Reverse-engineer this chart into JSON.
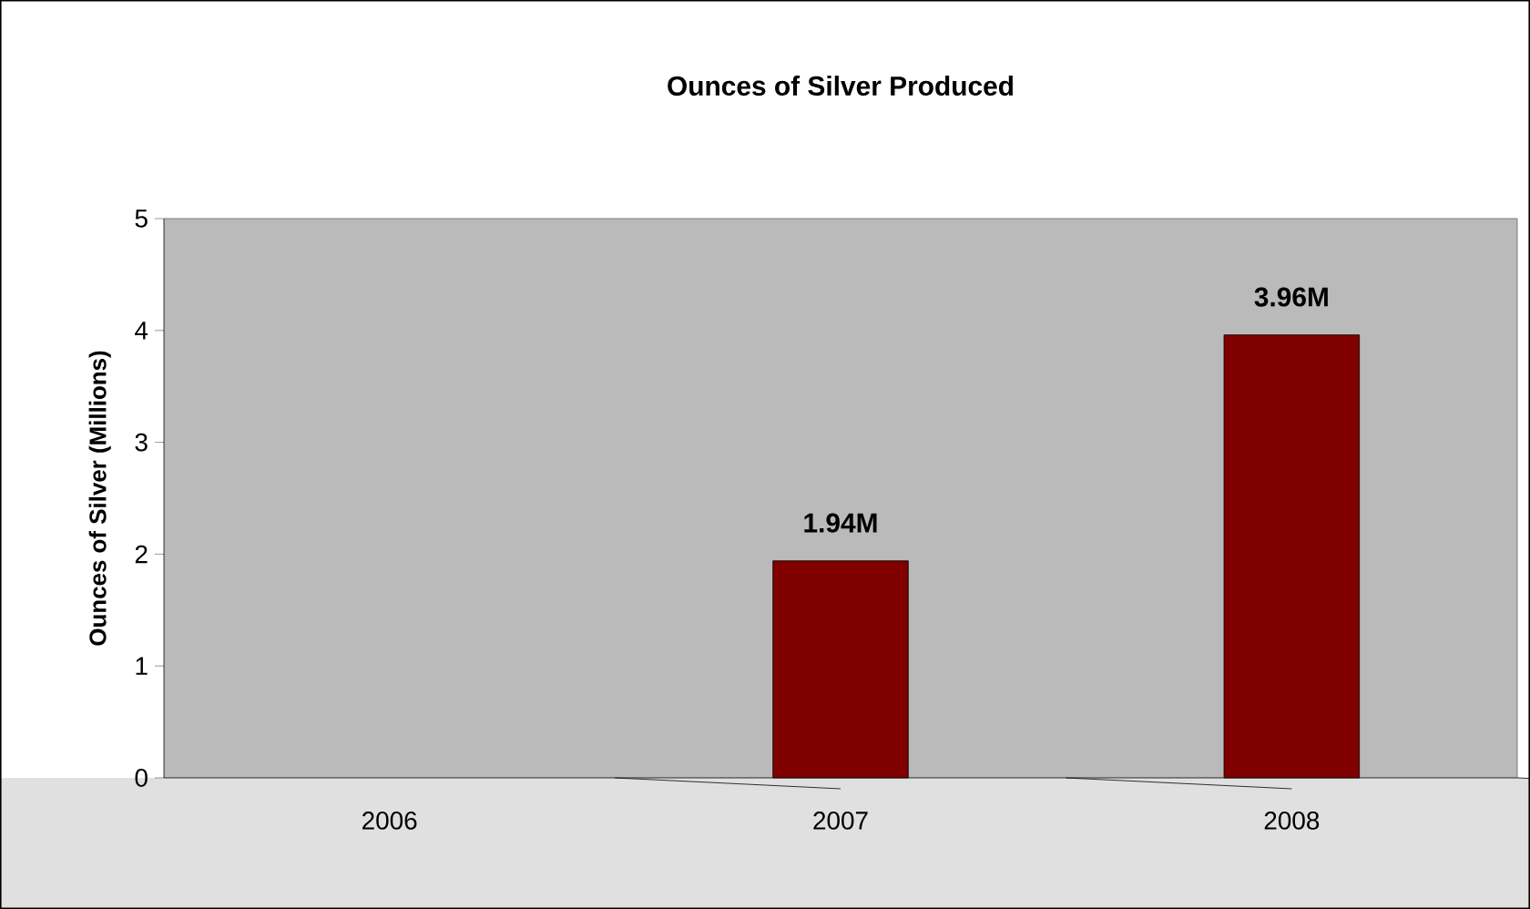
{
  "chart_data": {
    "type": "bar",
    "title": "Ounces of Silver Produced",
    "ylabel": "Ounces of Silver (Millions)",
    "categories": [
      "2006",
      "2007",
      "2008"
    ],
    "values": [
      null,
      1.94,
      3.96
    ],
    "value_labels": [
      null,
      "1.94M",
      "3.96M"
    ],
    "color": "#800000",
    "ylim": [
      0,
      5
    ],
    "yticks": [
      0,
      1,
      2,
      3,
      4,
      5
    ]
  }
}
